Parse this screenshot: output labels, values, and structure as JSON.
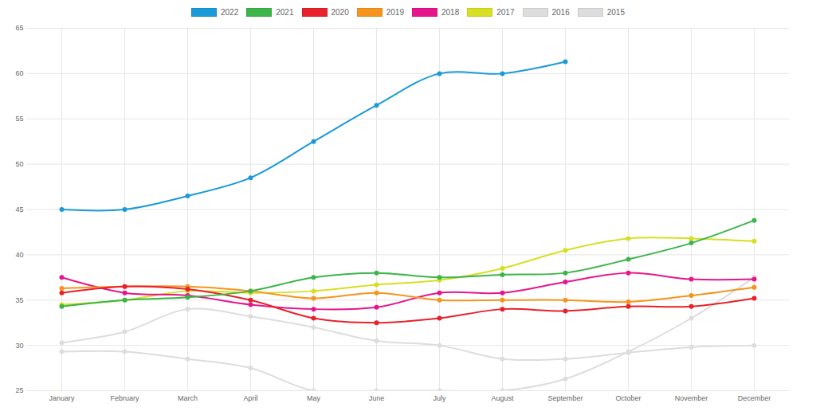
{
  "chart_data": {
    "type": "line",
    "categories": [
      "January",
      "February",
      "March",
      "April",
      "May",
      "June",
      "July",
      "August",
      "September",
      "October",
      "November",
      "December"
    ],
    "series": [
      {
        "name": "2022",
        "color": "#1a9ad9",
        "values": [
          45,
          45,
          46.5,
          48.5,
          52.5,
          56.5,
          60,
          60,
          61.3,
          null,
          null,
          null
        ]
      },
      {
        "name": "2021",
        "color": "#3cb54a",
        "values": [
          34.3,
          35,
          35.3,
          36,
          37.5,
          38,
          37.5,
          37.8,
          38,
          39.5,
          41.3,
          43.8
        ]
      },
      {
        "name": "2020",
        "color": "#e8212a",
        "values": [
          35.8,
          36.5,
          36.2,
          35,
          33,
          32.5,
          33,
          34,
          33.8,
          34.3,
          34.3,
          35.2
        ]
      },
      {
        "name": "2019",
        "color": "#f7941d",
        "values": [
          36.3,
          36.5,
          36.5,
          36,
          35.2,
          35.8,
          35,
          35,
          35,
          34.8,
          35.5,
          36.4
        ]
      },
      {
        "name": "2018",
        "color": "#e7158c",
        "values": [
          37.5,
          35.8,
          35.5,
          34.5,
          34,
          34.2,
          35.8,
          35.8,
          37,
          38,
          37.3,
          37.3
        ]
      },
      {
        "name": "2017",
        "color": "#d7df23",
        "values": [
          34.5,
          35,
          36,
          35.8,
          36,
          36.7,
          37.2,
          38.5,
          40.5,
          41.8,
          41.8,
          41.5
        ]
      },
      {
        "name": "2016",
        "color": "#dddddd",
        "values": [
          30.3,
          31.5,
          34,
          33.2,
          32,
          30.5,
          30,
          28.5,
          28.5,
          29.2,
          29.8,
          30
        ]
      },
      {
        "name": "2015",
        "color": "#dddddd",
        "values": [
          29.3,
          29.3,
          28.5,
          27.5,
          25,
          25,
          25,
          25,
          26.3,
          29.3,
          33,
          37.5
        ]
      }
    ],
    "ylim": [
      25,
      65
    ],
    "yticks": [
      25,
      30,
      35,
      40,
      45,
      50,
      55,
      60,
      65
    ],
    "grid": true,
    "legend": "top",
    "marker": "circle"
  }
}
